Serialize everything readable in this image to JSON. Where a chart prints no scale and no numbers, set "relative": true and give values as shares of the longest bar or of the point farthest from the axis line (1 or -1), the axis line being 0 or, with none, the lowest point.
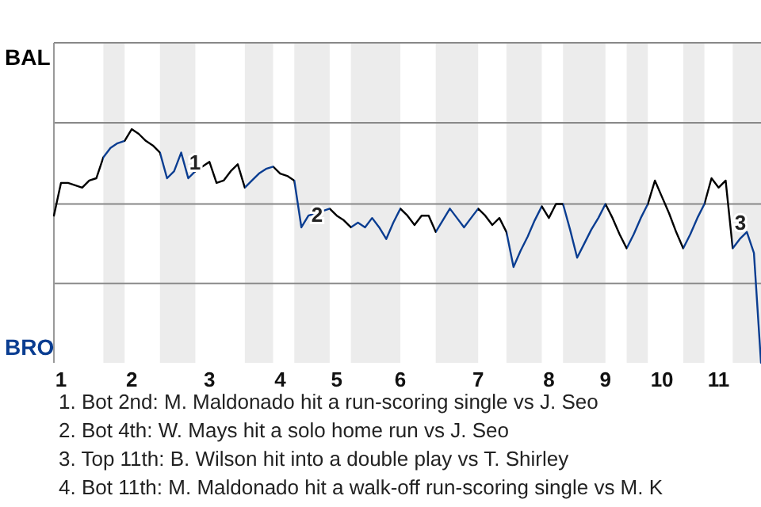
{
  "chart_data": {
    "type": "line",
    "relative": true,
    "categories": [
      null,
      "1",
      null,
      null,
      null,
      null,
      null,
      null,
      null,
      null,
      null,
      "2",
      null,
      null,
      null,
      null,
      null,
      null,
      null,
      null,
      null,
      null,
      "3",
      null,
      null,
      null,
      null,
      null,
      null,
      null,
      null,
      null,
      "4",
      null,
      null,
      null,
      null,
      null,
      null,
      null,
      "5",
      null,
      null,
      null,
      null,
      null,
      null,
      null,
      null,
      "6",
      null,
      null,
      null,
      null,
      null,
      null,
      null,
      null,
      null,
      null,
      "7",
      null,
      null,
      null,
      null,
      null,
      null,
      null,
      null,
      null,
      "8",
      null,
      null,
      null,
      null,
      null,
      null,
      null,
      "9",
      null,
      null,
      null,
      null,
      null,
      null,
      null,
      "10",
      null,
      null,
      null,
      null,
      null,
      null,
      null,
      "11",
      null,
      null,
      null,
      null,
      null,
      null
    ],
    "marker": "none",
    "line_style": "solid",
    "ref_lines": [
      {
        "axis": "y",
        "value": 0.34,
        "color": "#888888"
      },
      {
        "axis": "y",
        "value": 0.68,
        "color": "#888888"
      }
    ],
    "series": [
      {
        "color": "#000000",
        "values": [
          0.63,
          0.77,
          0.77,
          0.76,
          0.75,
          0.78,
          0.79,
          0.88,
          0.92,
          0.94,
          0.95,
          1,
          0.98,
          0.95,
          0.93,
          0.9,
          0.79,
          0.82,
          0.9,
          0.79,
          0.82,
          0.84,
          0.86,
          0.77,
          0.78,
          0.82,
          0.85,
          0.75,
          0.78,
          0.81,
          0.83,
          0.84,
          0.81,
          0.8,
          0.78,
          0.58,
          0.63,
          0.64,
          0.65,
          0.66,
          0.63,
          0.61,
          0.58,
          0.6,
          0.58,
          0.62,
          0.58,
          0.53,
          0.6,
          0.66,
          0.63,
          0.59,
          0.63,
          0.63,
          0.56,
          0.61,
          0.66,
          0.62,
          0.58,
          0.62,
          0.66,
          0.63,
          0.59,
          0.62,
          0.56,
          0.41,
          0.48,
          0.54,
          0.61,
          0.67,
          0.62,
          0.68,
          0.68,
          0.57,
          0.45,
          0.51,
          0.57,
          0.62,
          0.68,
          0.62,
          0.55,
          0.49,
          0.55,
          0.62,
          0.68,
          0.78,
          0.71,
          0.64,
          0.56,
          0.49,
          0.55,
          0.62,
          0.68,
          0.79,
          0.75,
          0.78,
          0.49,
          0.53,
          0.56,
          0.47,
          0
        ],
        "colors": [
          "#000000",
          "#000000",
          "#000000",
          "#000000",
          "#000000",
          "#000000",
          "#000000",
          "#0a3d91",
          "#0a3d91",
          "#0a3d91",
          "#000000",
          "#000000",
          "#000000",
          "#000000",
          "#000000",
          "#0a3d91",
          "#0a3d91",
          "#0a3d91",
          "#0a3d91",
          "#0a3d91",
          "#000000",
          "#000000",
          "#000000",
          "#000000",
          "#000000",
          "#000000",
          "#000000",
          "#0a3d91",
          "#0a3d91",
          "#0a3d91",
          "#0a3d91",
          "#000000",
          "#000000",
          "#000000",
          "#0a3d91",
          "#0a3d91",
          "#0a3d91",
          "#0a3d91",
          "#0a3d91",
          "#000000",
          "#000000",
          "#000000",
          "#0a3d91",
          "#0a3d91",
          "#0a3d91",
          "#0a3d91",
          "#0a3d91",
          "#0a3d91",
          "#0a3d91",
          "#000000",
          "#000000",
          "#000000",
          "#000000",
          "#000000",
          "#0a3d91",
          "#0a3d91",
          "#0a3d91",
          "#0a3d91",
          "#0a3d91",
          "#0a3d91",
          "#000000",
          "#000000",
          "#000000",
          "#000000",
          "#0a3d91",
          "#0a3d91",
          "#0a3d91",
          "#0a3d91",
          "#0a3d91",
          "#000000",
          "#000000",
          "#000000",
          "#0a3d91",
          "#0a3d91",
          "#0a3d91",
          "#0a3d91",
          "#0a3d91",
          "#0a3d91",
          "#000000",
          "#000000",
          "#000000",
          "#0a3d91",
          "#0a3d91",
          "#0a3d91",
          "#000000",
          "#000000",
          "#000000",
          "#000000",
          "#000000",
          "#0a3d91",
          "#0a3d91",
          "#0a3d91",
          "#000000",
          "#000000",
          "#000000",
          "#000000",
          "#0a3d91",
          "#0a3d91",
          "#0a3d91",
          "#0a3d91",
          "#0a3d91"
        ]
      }
    ],
    "annotations": [
      "BAL",
      "BRO",
      "1",
      "2",
      "3",
      "1. Bot 2nd: M. Maldonado hit a run-scoring single vs J. Seo",
      "2. Bot 4th: W. Mays hit a solo home run vs J. Seo",
      "3. Top 11th: B. Wilson hit into a double play vs T. Shirley",
      "4. Bot 11th: M. Maldonado hit a walk-off run-scoring single vs M. K"
    ]
  }
}
